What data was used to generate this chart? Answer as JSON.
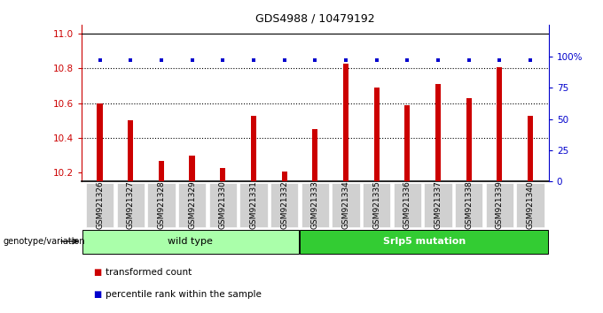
{
  "title": "GDS4988 / 10479192",
  "samples": [
    "GSM921326",
    "GSM921327",
    "GSM921328",
    "GSM921329",
    "GSM921330",
    "GSM921331",
    "GSM921332",
    "GSM921333",
    "GSM921334",
    "GSM921335",
    "GSM921336",
    "GSM921337",
    "GSM921338",
    "GSM921339",
    "GSM921340"
  ],
  "red_values": [
    10.6,
    10.5,
    10.27,
    10.3,
    10.23,
    10.53,
    10.21,
    10.45,
    10.83,
    10.69,
    10.59,
    10.71,
    10.63,
    10.81,
    10.53
  ],
  "blue_values": [
    97,
    97,
    97,
    97,
    97,
    97,
    97,
    97,
    97,
    97,
    97,
    97,
    97,
    97,
    97
  ],
  "ylim_left": [
    10.15,
    11.05
  ],
  "ylim_right": [
    0,
    125
  ],
  "yticks_left": [
    10.2,
    10.4,
    10.6,
    10.8,
    11.0
  ],
  "yticks_right": [
    0,
    25,
    50,
    75,
    100
  ],
  "bar_color": "#cc0000",
  "dot_color": "#0000cc",
  "bar_bottom": 10.15,
  "wild_type_label": "wild type",
  "mutation_label": "Srlp5 mutation",
  "genotype_label": "genotype/variation",
  "legend_red": "transformed count",
  "legend_blue": "percentile rank within the sample",
  "n_wild_type": 7,
  "tick_bg_color": "#d0d0d0",
  "wild_type_box_color": "#aaffaa",
  "mutation_box_color": "#33cc33",
  "plot_bg_color": "#ffffff",
  "grid_color": "#000000",
  "bar_width": 0.18
}
